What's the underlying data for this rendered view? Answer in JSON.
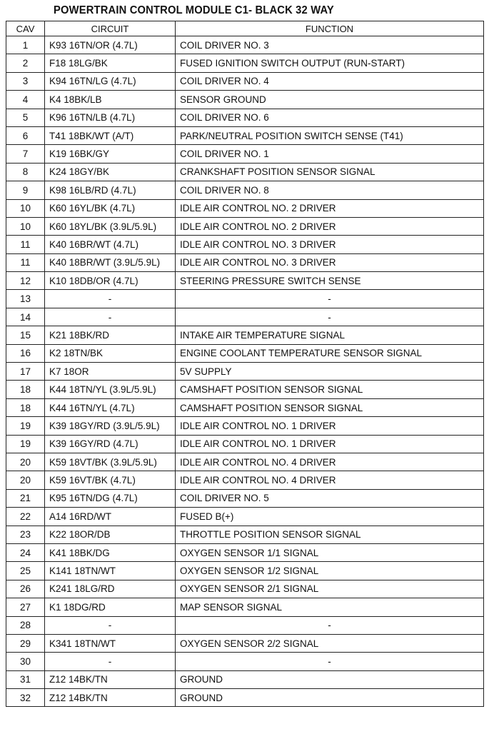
{
  "title": "POWERTRAIN CONTROL MODULE C1- BLACK 32 WAY",
  "headers": {
    "cav": "CAV",
    "circuit": "CIRCUIT",
    "function": "FUNCTION"
  },
  "rows": [
    [
      "1",
      "K93 16TN/OR (4.7L)",
      "COIL DRIVER NO. 3"
    ],
    [
      "2",
      "F18 18LG/BK",
      "FUSED IGNITION SWITCH OUTPUT (RUN-START)"
    ],
    [
      "3",
      "K94 16TN/LG (4.7L)",
      "COIL DRIVER NO. 4"
    ],
    [
      "4",
      "K4 18BK/LB",
      "SENSOR GROUND"
    ],
    [
      "5",
      "K96 16TN/LB (4.7L)",
      "COIL DRIVER NO. 6"
    ],
    [
      "6",
      "T41 18BK/WT (A/T)",
      "PARK/NEUTRAL POSITION SWITCH SENSE (T41)"
    ],
    [
      "7",
      "K19 16BK/GY",
      "COIL DRIVER NO. 1"
    ],
    [
      "8",
      "K24 18GY/BK",
      "CRANKSHAFT POSITION SENSOR SIGNAL"
    ],
    [
      "9",
      "K98 16LB/RD (4.7L)",
      "COIL DRIVER NO. 8"
    ],
    [
      "10",
      "K60 16YL/BK (4.7L)",
      "IDLE AIR CONTROL NO. 2 DRIVER"
    ],
    [
      "10",
      "K60 18YL/BK (3.9L/5.9L)",
      "IDLE AIR CONTROL NO. 2 DRIVER"
    ],
    [
      "11",
      "K40 16BR/WT (4.7L)",
      "IDLE AIR CONTROL NO. 3 DRIVER"
    ],
    [
      "11",
      "K40 18BR/WT (3.9L/5.9L)",
      "IDLE AIR CONTROL NO. 3 DRIVER"
    ],
    [
      "12",
      "K10 18DB/OR (4.7L)",
      "STEERING PRESSURE SWITCH SENSE"
    ],
    [
      "13",
      "-",
      "-"
    ],
    [
      "14",
      "-",
      "-"
    ],
    [
      "15",
      "K21 18BK/RD",
      "INTAKE AIR TEMPERATURE SIGNAL"
    ],
    [
      "16",
      "K2 18TN/BK",
      "ENGINE COOLANT TEMPERATURE SENSOR SIGNAL"
    ],
    [
      "17",
      "K7 18OR",
      "5V SUPPLY"
    ],
    [
      "18",
      "K44 18TN/YL (3.9L/5.9L)",
      "CAMSHAFT POSITION SENSOR SIGNAL"
    ],
    [
      "18",
      "K44 16TN/YL (4.7L)",
      "CAMSHAFT POSITION SENSOR SIGNAL"
    ],
    [
      "19",
      "K39 18GY/RD (3.9L/5.9L)",
      "IDLE AIR CONTROL NO. 1 DRIVER"
    ],
    [
      "19",
      "K39 16GY/RD (4.7L)",
      "IDLE AIR CONTROL NO. 1 DRIVER"
    ],
    [
      "20",
      "K59 18VT/BK (3.9L/5.9L)",
      "IDLE AIR CONTROL NO. 4 DRIVER"
    ],
    [
      "20",
      "K59 16VT/BK (4.7L)",
      "IDLE AIR CONTROL NO. 4 DRIVER"
    ],
    [
      "21",
      "K95 16TN/DG (4.7L)",
      "COIL DRIVER NO. 5"
    ],
    [
      "22",
      "A14 16RD/WT",
      "FUSED B(+)"
    ],
    [
      "23",
      "K22 18OR/DB",
      "THROTTLE POSITION SENSOR SIGNAL"
    ],
    [
      "24",
      "K41 18BK/DG",
      "OXYGEN SENSOR 1/1 SIGNAL"
    ],
    [
      "25",
      "K141 18TN/WT",
      "OXYGEN SENSOR 1/2 SIGNAL"
    ],
    [
      "26",
      "K241 18LG/RD",
      "OXYGEN SENSOR 2/1 SIGNAL"
    ],
    [
      "27",
      "K1 18DG/RD",
      "MAP SENSOR SIGNAL"
    ],
    [
      "28",
      "-",
      "-"
    ],
    [
      "29",
      "K341 18TN/WT",
      "OXYGEN SENSOR 2/2 SIGNAL"
    ],
    [
      "30",
      "-",
      "-"
    ],
    [
      "31",
      "Z12 14BK/TN",
      "GROUND"
    ],
    [
      "32",
      "Z12 14BK/TN",
      "GROUND"
    ]
  ]
}
